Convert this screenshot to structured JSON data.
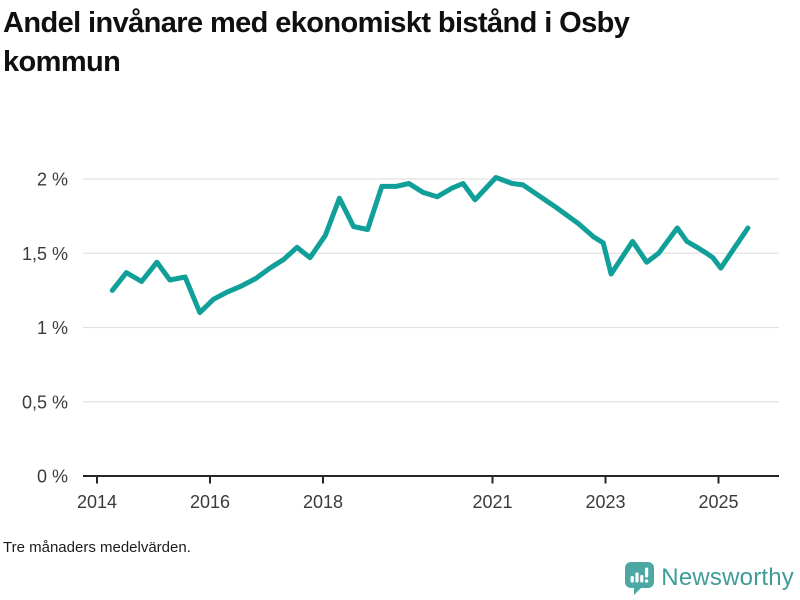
{
  "title": {
    "full": "Andel invånare med ekonomiskt bistånd i Osby kommun",
    "lines": [
      "Andel invånare med ekonomiskt bistånd i Osby",
      "kommun"
    ]
  },
  "footer": {
    "note": "Tre månaders medelvärden."
  },
  "branding": {
    "name": "Newsworthy",
    "icon": "newsworthy-bars-speech-bubble-icon",
    "icon_color": "#4ba8a3",
    "text_color": "#3f9c99"
  },
  "chart_data": {
    "type": "line",
    "title": "Andel invånare med ekonomiskt bistånd i Osby kommun",
    "note": "Tre månaders medelvärden.",
    "unit": "%",
    "xlabel": "",
    "ylabel": "",
    "grid": true,
    "legend": "none",
    "xlim": [
      2013.75,
      2026.1
    ],
    "ylim": [
      0,
      2.1
    ],
    "line_color": "#10a099",
    "grid_color": "#e2e2e2",
    "axis_color": "#262626",
    "y_ticks": [
      {
        "label": "0 %",
        "value": 0
      },
      {
        "label": "0,5 %",
        "value": 0.5
      },
      {
        "label": "1 %",
        "value": 1
      },
      {
        "label": "1,5 %",
        "value": 1.5
      },
      {
        "label": "2 %",
        "value": 2
      }
    ],
    "x_ticks": [
      {
        "label": "2014",
        "year": 2014
      },
      {
        "label": "2016",
        "year": 2016
      },
      {
        "label": "2018",
        "year": 2018
      },
      {
        "label": "2021",
        "year": 2021
      },
      {
        "label": "2023",
        "year": 2023
      },
      {
        "label": "2025",
        "year": 2025
      }
    ],
    "series": [
      {
        "name": "Andel invånare med ekonomiskt bistånd",
        "color": "#10a099",
        "points": [
          [
            2014.27,
            1.25
          ],
          [
            2014.52,
            1.37
          ],
          [
            2014.79,
            1.31
          ],
          [
            2015.06,
            1.44
          ],
          [
            2015.29,
            1.32
          ],
          [
            2015.56,
            1.34
          ],
          [
            2015.82,
            1.1
          ],
          [
            2016.06,
            1.19
          ],
          [
            2016.31,
            1.24
          ],
          [
            2016.56,
            1.28
          ],
          [
            2016.81,
            1.33
          ],
          [
            2017.06,
            1.4
          ],
          [
            2017.31,
            1.46
          ],
          [
            2017.54,
            1.54
          ],
          [
            2017.77,
            1.47
          ],
          [
            2018.04,
            1.62
          ],
          [
            2018.29,
            1.87
          ],
          [
            2018.54,
            1.68
          ],
          [
            2018.79,
            1.66
          ],
          [
            2019.04,
            1.95
          ],
          [
            2019.29,
            1.95
          ],
          [
            2019.52,
            1.97
          ],
          [
            2019.77,
            1.91
          ],
          [
            2020.02,
            1.88
          ],
          [
            2020.29,
            1.94
          ],
          [
            2020.48,
            1.97
          ],
          [
            2020.69,
            1.86
          ],
          [
            2021.06,
            2.01
          ],
          [
            2021.35,
            1.97
          ],
          [
            2021.54,
            1.96
          ],
          [
            2021.81,
            1.89
          ],
          [
            2022.12,
            1.81
          ],
          [
            2022.52,
            1.7
          ],
          [
            2022.79,
            1.61
          ],
          [
            2022.96,
            1.57
          ],
          [
            2023.1,
            1.36
          ],
          [
            2023.48,
            1.58
          ],
          [
            2023.73,
            1.44
          ],
          [
            2023.94,
            1.5
          ],
          [
            2024.27,
            1.67
          ],
          [
            2024.44,
            1.58
          ],
          [
            2024.62,
            1.54
          ],
          [
            2024.79,
            1.5
          ],
          [
            2024.9,
            1.47
          ],
          [
            2025.04,
            1.4
          ],
          [
            2025.27,
            1.53
          ],
          [
            2025.52,
            1.67
          ]
        ]
      }
    ]
  }
}
